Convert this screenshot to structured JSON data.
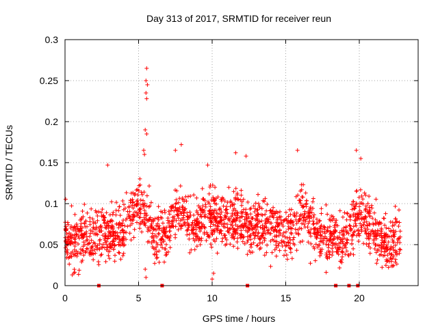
{
  "chart_data": {
    "type": "scatter",
    "title": "Day 313 of 2017, SRMTID for receiver reun",
    "xlabel": "GPS time / hours",
    "ylabel": "SRMTID / TECUs",
    "xlim": [
      0,
      24
    ],
    "ylim": [
      0,
      0.3
    ],
    "grid": true,
    "x_ticks": [
      0,
      5,
      10,
      15,
      20
    ],
    "x_tick_labels": [
      "0",
      "5",
      "10",
      "15",
      "20"
    ],
    "y_ticks": [
      0,
      0.05,
      0.1,
      0.15,
      0.2,
      0.25,
      0.3
    ],
    "y_tick_labels": [
      "0",
      "0.05",
      "0.1",
      "0.15",
      "0.2",
      "0.25",
      "0.3"
    ],
    "marker": "+",
    "series_color": "#ff0000",
    "grid_color": "#a0a0a0",
    "trend": [
      [
        0.0,
        0.058
      ],
      [
        0.5,
        0.052
      ],
      [
        1.0,
        0.055
      ],
      [
        1.5,
        0.06
      ],
      [
        2.0,
        0.062
      ],
      [
        2.5,
        0.065
      ],
      [
        3.0,
        0.06
      ],
      [
        3.5,
        0.058
      ],
      [
        4.0,
        0.075
      ],
      [
        4.5,
        0.088
      ],
      [
        5.0,
        0.098
      ],
      [
        5.5,
        0.082
      ],
      [
        6.0,
        0.065
      ],
      [
        6.5,
        0.055
      ],
      [
        7.0,
        0.065
      ],
      [
        7.5,
        0.09
      ],
      [
        8.0,
        0.09
      ],
      [
        8.5,
        0.08
      ],
      [
        9.0,
        0.075
      ],
      [
        9.5,
        0.08
      ],
      [
        10.0,
        0.085
      ],
      [
        10.5,
        0.078
      ],
      [
        11.0,
        0.082
      ],
      [
        11.5,
        0.078
      ],
      [
        12.0,
        0.08
      ],
      [
        12.5,
        0.068
      ],
      [
        13.0,
        0.07
      ],
      [
        13.5,
        0.07
      ],
      [
        14.0,
        0.072
      ],
      [
        14.5,
        0.07
      ],
      [
        15.0,
        0.06
      ],
      [
        15.5,
        0.072
      ],
      [
        16.0,
        0.09
      ],
      [
        16.5,
        0.085
      ],
      [
        17.0,
        0.065
      ],
      [
        17.5,
        0.06
      ],
      [
        18.0,
        0.065
      ],
      [
        18.5,
        0.058
      ],
      [
        19.0,
        0.055
      ],
      [
        19.5,
        0.075
      ],
      [
        20.0,
        0.085
      ],
      [
        20.5,
        0.078
      ],
      [
        21.0,
        0.07
      ],
      [
        21.5,
        0.058
      ],
      [
        22.0,
        0.05
      ],
      [
        22.5,
        0.055
      ],
      [
        22.8,
        0.052
      ]
    ],
    "spikes": [
      {
        "x": 5.55,
        "y": 0.265
      },
      {
        "x": 5.5,
        "y": 0.25
      },
      {
        "x": 5.6,
        "y": 0.245
      },
      {
        "x": 5.5,
        "y": 0.235
      },
      {
        "x": 5.55,
        "y": 0.228
      },
      {
        "x": 5.45,
        "y": 0.19
      },
      {
        "x": 5.55,
        "y": 0.185
      },
      {
        "x": 5.35,
        "y": 0.165
      },
      {
        "x": 5.4,
        "y": 0.16
      },
      {
        "x": 2.9,
        "y": 0.147
      },
      {
        "x": 7.5,
        "y": 0.165
      },
      {
        "x": 7.9,
        "y": 0.172
      },
      {
        "x": 9.7,
        "y": 0.147
      },
      {
        "x": 11.6,
        "y": 0.162
      },
      {
        "x": 12.3,
        "y": 0.158
      },
      {
        "x": 15.8,
        "y": 0.165
      },
      {
        "x": 19.8,
        "y": 0.165
      },
      {
        "x": 20.1,
        "y": 0.155
      },
      {
        "x": 5.5,
        "y": 0.01
      },
      {
        "x": 5.45,
        "y": 0.02
      },
      {
        "x": 10.0,
        "y": 0.008
      },
      {
        "x": 10.1,
        "y": 0.015
      },
      {
        "x": 0.6,
        "y": 0.015
      }
    ],
    "zero_markers": [
      2.3,
      6.6,
      12.4,
      18.4,
      19.3,
      19.9
    ]
  }
}
